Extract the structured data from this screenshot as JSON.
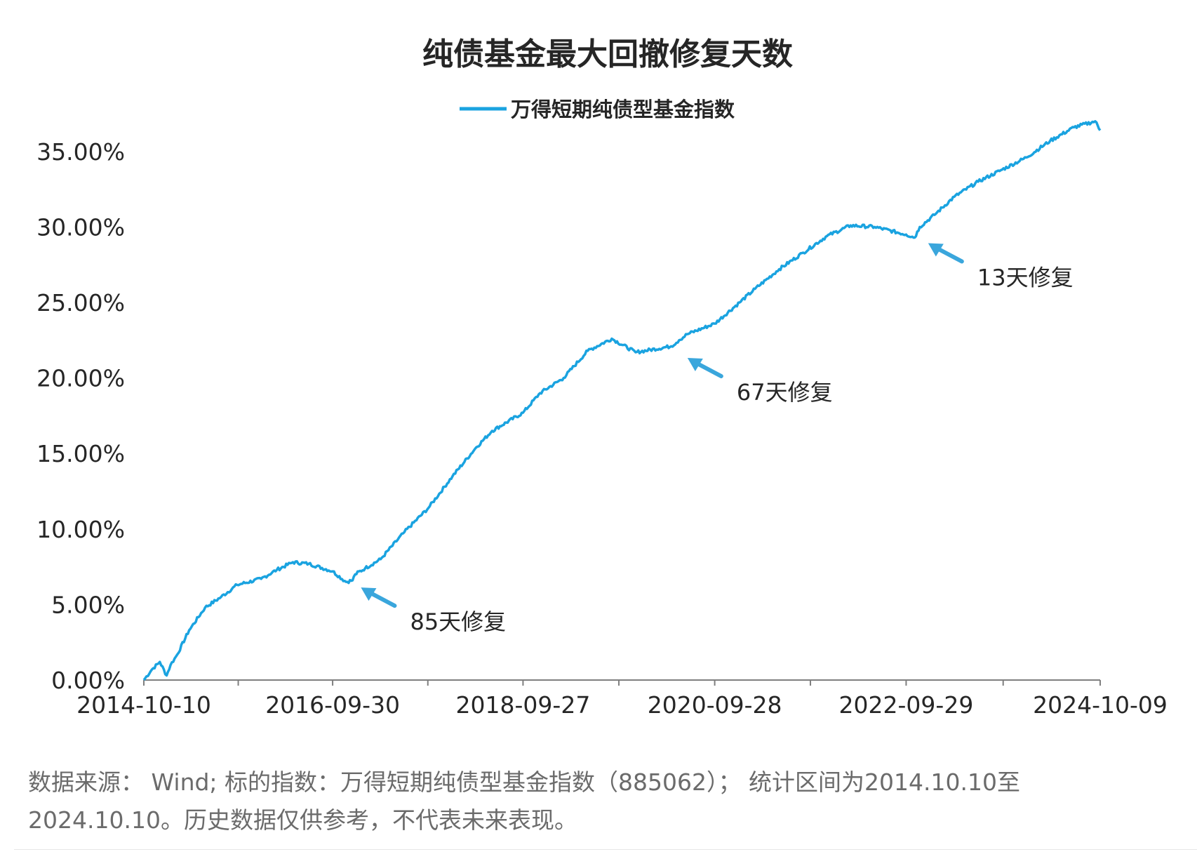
{
  "chart_data": {
    "type": "line",
    "title": "纯债基金最大回撤修复天数",
    "xlabel": "",
    "ylabel": "",
    "x_ticks": [
      "2014-10-10",
      "2016-09-30",
      "2018-09-27",
      "2020-09-28",
      "2022-09-29",
      "2024-10-09"
    ],
    "y_ticks": [
      "0.00%",
      "5.00%",
      "10.00%",
      "15.00%",
      "20.00%",
      "25.00%",
      "30.00%",
      "35.00%"
    ],
    "xlim": [
      "2014-10-10",
      "2024-10-09"
    ],
    "ylim": [
      0,
      37
    ],
    "grid": false,
    "legend_position": "top-center",
    "color": "#1aa3e0",
    "series": [
      {
        "name": "万得短期纯债型基金指数",
        "x": [
          "2014-10-10",
          "2014-11-10",
          "2014-12-10",
          "2015-01-05",
          "2015-01-20",
          "2015-02-15",
          "2015-04-01",
          "2015-06-01",
          "2015-08-01",
          "2015-10-01",
          "2016-01-01",
          "2016-03-01",
          "2016-05-01",
          "2016-07-01",
          "2016-09-30",
          "2016-11-20",
          "2016-12-15",
          "2016-12-25",
          "2017-02-01",
          "2017-04-01",
          "2017-07-01",
          "2017-10-01",
          "2018-01-01",
          "2018-04-01",
          "2018-06-01",
          "2018-09-27",
          "2018-12-01",
          "2019-03-01",
          "2019-06-01",
          "2019-09-01",
          "2019-12-01",
          "2020-04-15",
          "2020-05-15",
          "2020-06-15",
          "2020-09-28",
          "2021-01-01",
          "2021-03-01",
          "2021-06-01",
          "2021-09-01",
          "2021-12-01",
          "2022-03-01",
          "2022-06-01",
          "2022-09-29",
          "2022-11-01",
          "2022-11-20",
          "2023-01-15",
          "2023-04-01",
          "2023-07-01",
          "2023-10-01",
          "2024-01-01",
          "2024-04-01",
          "2024-07-01",
          "2024-09-20",
          "2024-10-09"
        ],
        "values": [
          0.0,
          0.7,
          1.2,
          0.3,
          1.0,
          1.7,
          3.3,
          4.8,
          5.5,
          6.3,
          6.7,
          7.3,
          7.8,
          7.7,
          7.2,
          6.5,
          6.6,
          7.0,
          7.4,
          8.0,
          9.8,
          11.4,
          13.5,
          15.4,
          16.5,
          17.7,
          19.0,
          20.0,
          21.8,
          22.6,
          21.7,
          22.1,
          22.5,
          22.9,
          23.6,
          25.0,
          25.9,
          27.2,
          28.3,
          29.4,
          30.1,
          30.0,
          29.5,
          29.3,
          30.0,
          30.8,
          32.0,
          33.0,
          33.8,
          34.6,
          35.7,
          36.6,
          37.0,
          36.4
        ]
      }
    ],
    "annotations": [
      {
        "text": "85天修复",
        "x": "2016-12-15",
        "y": 6.5
      },
      {
        "text": "67天修复",
        "x": "2020-05-15",
        "y": 21.7
      },
      {
        "text": "13天修复",
        "x": "2022-11-20",
        "y": 29.3
      }
    ]
  },
  "footnote": {
    "line1": "数据来源： Wind; 标的指数：万得短期纯债型基金指数（885062）； 统计区间为2014.10.10至",
    "line2": "2024.10.10。历史数据仅供参考，不代表未来表现。"
  }
}
